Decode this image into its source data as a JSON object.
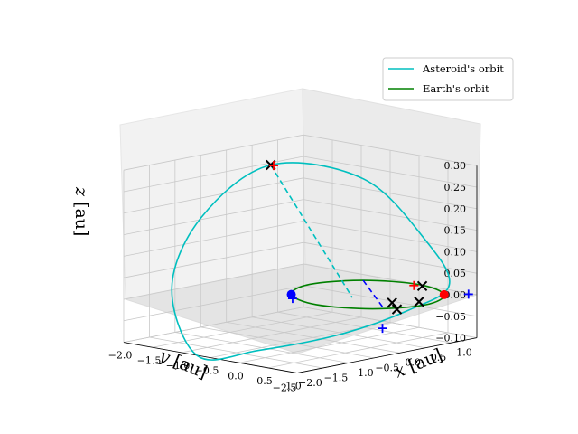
{
  "chart_data": {
    "type": "line",
    "projection": "3d",
    "title": "",
    "xlabel": "$x$ [au]",
    "ylabel": "$y$ [au]",
    "zlabel": "$z$ [au]",
    "xlim": [
      -2.0,
      1.0
    ],
    "ylim": [
      -2.5,
      1.0
    ],
    "zlim": [
      -0.1,
      0.3
    ],
    "x_ticks": [
      "−2.0",
      "−1.5",
      "−1.0",
      "−0.5",
      "0.0",
      "0.5",
      "1.0"
    ],
    "y_ticks": [
      "1.0",
      "0.5",
      "0.0",
      "−0.5",
      "−1.0",
      "−1.5",
      "−2.0",
      "−2.5"
    ],
    "z_ticks": [
      "0.30",
      "0.25",
      "0.20",
      "0.15",
      "0.10",
      "0.05",
      "0.00",
      "−0.05",
      "−0.10"
    ],
    "grid": true,
    "legend_position": "top-right",
    "series": [
      {
        "name": "Asteroid's orbit",
        "color": "#00bfbf",
        "points": [
          [
            0.7,
            0.8,
            0.02
          ],
          [
            0.2,
            0.9,
            0.11
          ],
          [
            -0.6,
            0.6,
            0.24
          ],
          [
            -1.5,
            -0.2,
            0.27
          ],
          [
            -1.9,
            -1.1,
            0.16
          ],
          [
            -1.7,
            -1.9,
            0.02
          ],
          [
            -0.9,
            -2.3,
            -0.11
          ],
          [
            -0.2,
            -1.9,
            -0.09
          ],
          [
            0.4,
            -1.0,
            -0.06
          ],
          [
            0.7,
            0.0,
            -0.02
          ],
          [
            0.7,
            0.8,
            0.02
          ]
        ]
      },
      {
        "name": "Earth's orbit",
        "color": "#008000",
        "points": [
          [
            1.0,
            0.0,
            0.0
          ],
          [
            0.7,
            0.7,
            0.0
          ],
          [
            0.0,
            1.0,
            0.0
          ],
          [
            -0.7,
            0.7,
            0.0
          ],
          [
            -1.0,
            0.0,
            0.0
          ],
          [
            -0.7,
            -0.7,
            0.0
          ],
          [
            0.0,
            -1.0,
            0.0
          ],
          [
            0.7,
            -0.7,
            0.0
          ],
          [
            1.0,
            0.0,
            0.0
          ]
        ]
      }
    ],
    "connectors": [
      {
        "color": "#0000ff",
        "style": "dashed",
        "points": [
          [
            -0.7,
            0.7,
            0.0
          ],
          [
            0.7,
            -0.5,
            0.0
          ]
        ]
      },
      {
        "color": "#00bfbf",
        "style": "dashed",
        "points": [
          [
            -1.5,
            -0.2,
            0.27
          ],
          [
            0.0,
            -0.3,
            0.0
          ]
        ]
      }
    ],
    "markers": [
      {
        "kind": "x",
        "color": "#000000",
        "points": [
          [
            -1.5,
            -0.2,
            0.27
          ],
          [
            0.1,
            0.95,
            0.0
          ],
          [
            0.6,
            -0.2,
            0.0
          ],
          [
            0.8,
            0.1,
            0.0
          ],
          [
            0.95,
            -0.5,
            0.0
          ]
        ]
      },
      {
        "kind": "plus",
        "color": "#0000ff",
        "points": [
          [
            0.9,
            0.95,
            0.0
          ],
          [
            -0.5,
            -0.9,
            0.0
          ],
          [
            0.7,
            -0.5,
            -0.05
          ]
        ]
      },
      {
        "kind": "plus",
        "color": "#ff0000",
        "points": [
          [
            -1.45,
            -0.2,
            0.27
          ],
          [
            0.0,
            0.9,
            0.0
          ]
        ]
      },
      {
        "kind": "dot",
        "color": "#ff0000",
        "points": [
          [
            0.7,
            0.7,
            0.0
          ]
        ]
      },
      {
        "kind": "dot",
        "color": "#0000ff",
        "points": [
          [
            -0.7,
            -0.7,
            0.0
          ]
        ]
      }
    ]
  }
}
